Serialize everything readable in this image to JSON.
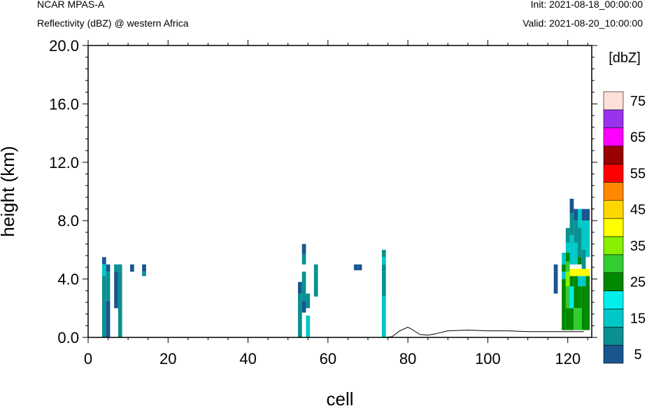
{
  "header": {
    "left_line1": "NCAR MPAS-A",
    "left_line2": "Reflectivity (dBZ) @ western Africa",
    "right_line1": "Init: 2021-08-18_00:00:00",
    "right_line2": "Valid: 2021-08-20_10:00:00"
  },
  "chart_data": {
    "type": "heatmap",
    "xlabel": "cell",
    "ylabel": "height (km)",
    "xlim": [
      0,
      126
    ],
    "ylim": [
      0,
      20
    ],
    "x_ticks": [
      0,
      20,
      40,
      60,
      80,
      100,
      120
    ],
    "y_ticks": [
      "0.0",
      "4.0",
      "8.0",
      "12.0",
      "16.0",
      "20.0"
    ],
    "colorbar": {
      "unit": "[dbZ]",
      "levels": [
        5,
        10,
        15,
        20,
        25,
        30,
        35,
        40,
        45,
        50,
        55,
        60,
        65,
        70,
        75
      ],
      "labels": [
        "5",
        "15",
        "25",
        "35",
        "45",
        "55",
        "65",
        "75"
      ],
      "colors": [
        "#1a5590",
        "#0a9090",
        "#00c8c8",
        "#00eeee",
        "#008800",
        "#33cc33",
        "#88f000",
        "#ffff00",
        "#ffd700",
        "#ff8800",
        "#ff0000",
        "#990000",
        "#ff00ff",
        "#9933ee",
        "#ffe0d8"
      ]
    },
    "terrain": [
      [
        0,
        0
      ],
      [
        74,
        0
      ],
      [
        76,
        0.05
      ],
      [
        78,
        0.45
      ],
      [
        80,
        0.7
      ],
      [
        81,
        0.55
      ],
      [
        83,
        0.2
      ],
      [
        85,
        0.15
      ],
      [
        87,
        0.25
      ],
      [
        90,
        0.45
      ],
      [
        95,
        0.5
      ],
      [
        100,
        0.45
      ],
      [
        105,
        0.45
      ],
      [
        110,
        0.4
      ],
      [
        115,
        0.4
      ],
      [
        120,
        0.4
      ],
      [
        124,
        0.4
      ]
    ],
    "cells": [
      {
        "x": 4,
        "y0": 5,
        "y1": 5.5,
        "dbz": 5
      },
      {
        "x": 4,
        "y0": 4.2,
        "y1": 5,
        "dbz": 15
      },
      {
        "x": 4,
        "y0": 0,
        "y1": 4.2,
        "dbz": 10
      },
      {
        "x": 5,
        "y0": 4.5,
        "y1": 5,
        "dbz": 5
      },
      {
        "x": 5,
        "y0": 2.5,
        "y1": 4.5,
        "dbz": 10
      },
      {
        "x": 5,
        "y0": 0,
        "y1": 2.5,
        "dbz": 5
      },
      {
        "x": 7,
        "y0": 4.5,
        "y1": 5,
        "dbz": 10
      },
      {
        "x": 7,
        "y0": 2,
        "y1": 4.5,
        "dbz": 5
      },
      {
        "x": 8,
        "y0": 4.5,
        "y1": 5,
        "dbz": 10
      },
      {
        "x": 8,
        "y0": 0,
        "y1": 4.5,
        "dbz": 10
      },
      {
        "x": 11,
        "y0": 4.5,
        "y1": 5,
        "dbz": 5
      },
      {
        "x": 14,
        "y0": 4.5,
        "y1": 5,
        "dbz": 5
      },
      {
        "x": 14,
        "y0": 4.2,
        "y1": 4.5,
        "dbz": 10
      },
      {
        "x": 53,
        "y0": 3,
        "y1": 3.8,
        "dbz": 5
      },
      {
        "x": 53,
        "y0": 0,
        "y1": 3,
        "dbz": 10
      },
      {
        "x": 54,
        "y0": 5.7,
        "y1": 6.4,
        "dbz": 5
      },
      {
        "x": 54,
        "y0": 5,
        "y1": 5.7,
        "dbz": 10
      },
      {
        "x": 54,
        "y0": 3.5,
        "y1": 4.5,
        "dbz": 10
      },
      {
        "x": 54,
        "y0": 2.5,
        "y1": 3.5,
        "dbz": 10
      },
      {
        "x": 54,
        "y0": 1.7,
        "y1": 2.5,
        "dbz": 5
      },
      {
        "x": 55,
        "y0": 2,
        "y1": 3,
        "dbz": 10
      },
      {
        "x": 55,
        "y0": 0,
        "y1": 1.5,
        "dbz": 15
      },
      {
        "x": 57,
        "y0": 4.5,
        "y1": 5,
        "dbz": 10
      },
      {
        "x": 57,
        "y0": 2.8,
        "y1": 4.5,
        "dbz": 10
      },
      {
        "x": 67,
        "y0": 4.6,
        "y1": 5,
        "dbz": 5
      },
      {
        "x": 68,
        "y0": 4.6,
        "y1": 5,
        "dbz": 5
      },
      {
        "x": 74,
        "y0": 5.5,
        "y1": 6,
        "dbz": 10
      },
      {
        "x": 74,
        "y0": 5,
        "y1": 5.5,
        "dbz": 15
      },
      {
        "x": 74,
        "y0": 4.5,
        "y1": 5,
        "dbz": 10
      },
      {
        "x": 74,
        "y0": 2.8,
        "y1": 4.5,
        "dbz": 10
      },
      {
        "x": 74,
        "y0": 0,
        "y1": 2.8,
        "dbz": 15
      },
      {
        "x": 117,
        "y0": 4.5,
        "y1": 5,
        "dbz": 5
      },
      {
        "x": 117,
        "y0": 3,
        "y1": 4.5,
        "dbz": 5
      },
      {
        "x": 119,
        "y0": 5,
        "y1": 5.8,
        "dbz": 15
      },
      {
        "x": 119,
        "y0": 4.5,
        "y1": 5,
        "dbz": 25
      },
      {
        "x": 119,
        "y0": 4,
        "y1": 4.5,
        "dbz": 15
      },
      {
        "x": 119,
        "y0": 0.5,
        "y1": 4,
        "dbz": 25
      },
      {
        "x": 120,
        "y0": 6.5,
        "y1": 7.5,
        "dbz": 10
      },
      {
        "x": 120,
        "y0": 5.8,
        "y1": 6.5,
        "dbz": 15
      },
      {
        "x": 120,
        "y0": 5.2,
        "y1": 5.8,
        "dbz": 25
      },
      {
        "x": 120,
        "y0": 4.5,
        "y1": 5.2,
        "dbz": 30
      },
      {
        "x": 120,
        "y0": 3.5,
        "y1": 4.5,
        "dbz": 35
      },
      {
        "x": 120,
        "y0": 2,
        "y1": 3.5,
        "dbz": 30
      },
      {
        "x": 120,
        "y0": 0.5,
        "y1": 2,
        "dbz": 25
      },
      {
        "x": 121,
        "y0": 8.5,
        "y1": 9.5,
        "dbz": 5
      },
      {
        "x": 121,
        "y0": 7,
        "y1": 8.5,
        "dbz": 10
      },
      {
        "x": 121,
        "y0": 5,
        "y1": 7,
        "dbz": 15
      },
      {
        "x": 121,
        "y0": 4.2,
        "y1": 4.7,
        "dbz": 40
      },
      {
        "x": 121,
        "y0": 3.5,
        "y1": 4.2,
        "dbz": 25
      },
      {
        "x": 121,
        "y0": 2,
        "y1": 3.5,
        "dbz": 20
      },
      {
        "x": 121,
        "y0": 0.5,
        "y1": 2,
        "dbz": 25
      },
      {
        "x": 122,
        "y0": 8,
        "y1": 8.8,
        "dbz": 5
      },
      {
        "x": 122,
        "y0": 6.5,
        "y1": 8,
        "dbz": 10
      },
      {
        "x": 122,
        "y0": 5,
        "y1": 6.5,
        "dbz": 15
      },
      {
        "x": 122,
        "y0": 4.2,
        "y1": 4.7,
        "dbz": 40
      },
      {
        "x": 122,
        "y0": 2,
        "y1": 4.2,
        "dbz": 25
      },
      {
        "x": 122,
        "y0": 0.5,
        "y1": 2,
        "dbz": 30
      },
      {
        "x": 123,
        "y0": 7.5,
        "y1": 8.8,
        "dbz": 15
      },
      {
        "x": 123,
        "y0": 5.5,
        "y1": 7.5,
        "dbz": 10
      },
      {
        "x": 123,
        "y0": 5,
        "y1": 5.5,
        "dbz": 25
      },
      {
        "x": 123,
        "y0": 4.2,
        "y1": 4.7,
        "dbz": 40
      },
      {
        "x": 123,
        "y0": 3.5,
        "y1": 4.2,
        "dbz": 15
      },
      {
        "x": 123,
        "y0": 2,
        "y1": 3.5,
        "dbz": 25
      },
      {
        "x": 123,
        "y0": 0.5,
        "y1": 2,
        "dbz": 30
      },
      {
        "x": 124,
        "y0": 8,
        "y1": 8.8,
        "dbz": 5
      },
      {
        "x": 124,
        "y0": 6,
        "y1": 8,
        "dbz": 15
      },
      {
        "x": 124,
        "y0": 4.7,
        "y1": 6,
        "dbz": 10
      },
      {
        "x": 124,
        "y0": 4.2,
        "y1": 4.7,
        "dbz": 40
      },
      {
        "x": 124,
        "y0": 3.5,
        "y1": 4.2,
        "dbz": 15
      },
      {
        "x": 124,
        "y0": 0.5,
        "y1": 3.5,
        "dbz": 25
      },
      {
        "x": 125,
        "y0": 8,
        "y1": 8.8,
        "dbz": 5
      },
      {
        "x": 125,
        "y0": 5.5,
        "y1": 8,
        "dbz": 15
      },
      {
        "x": 125,
        "y0": 4.2,
        "y1": 4.7,
        "dbz": 40
      },
      {
        "x": 125,
        "y0": 0.5,
        "y1": 4.2,
        "dbz": 25
      }
    ]
  }
}
